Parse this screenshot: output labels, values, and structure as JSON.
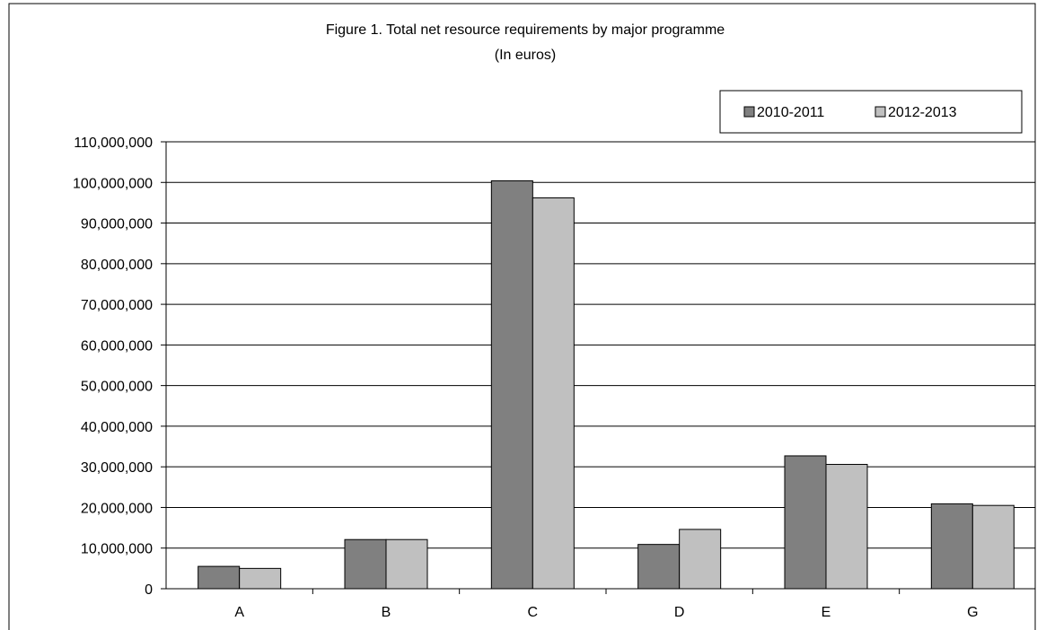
{
  "chart_data": {
    "type": "bar",
    "title": "Figure 1.  Total net resource requirements by major programme",
    "subtitle": "(In euros)",
    "categories": [
      "A",
      "B",
      "C",
      "D",
      "E",
      "G"
    ],
    "series": [
      {
        "name": "2010-2011",
        "color": "#808080",
        "values": [
          5500000,
          12100000,
          100400000,
          10900000,
          32700000,
          20900000
        ]
      },
      {
        "name": "2012-2013",
        "color": "#c0c0c0",
        "values": [
          5000000,
          12100000,
          96200000,
          14600000,
          30600000,
          20500000
        ]
      }
    ],
    "ylim": [
      0,
      110000000
    ],
    "yticks": [
      0,
      10000000,
      20000000,
      30000000,
      40000000,
      50000000,
      60000000,
      70000000,
      80000000,
      90000000,
      100000000,
      110000000
    ],
    "ytick_labels": [
      "0",
      "10,000,000",
      "20,000,000",
      "30,000,000",
      "40,000,000",
      "50,000,000",
      "60,000,000",
      "70,000,000",
      "80,000,000",
      "90,000,000",
      "100,000,000",
      "110,000,000"
    ],
    "grid": true,
    "legend_position": "top-right",
    "xlabel": "",
    "ylabel": ""
  }
}
